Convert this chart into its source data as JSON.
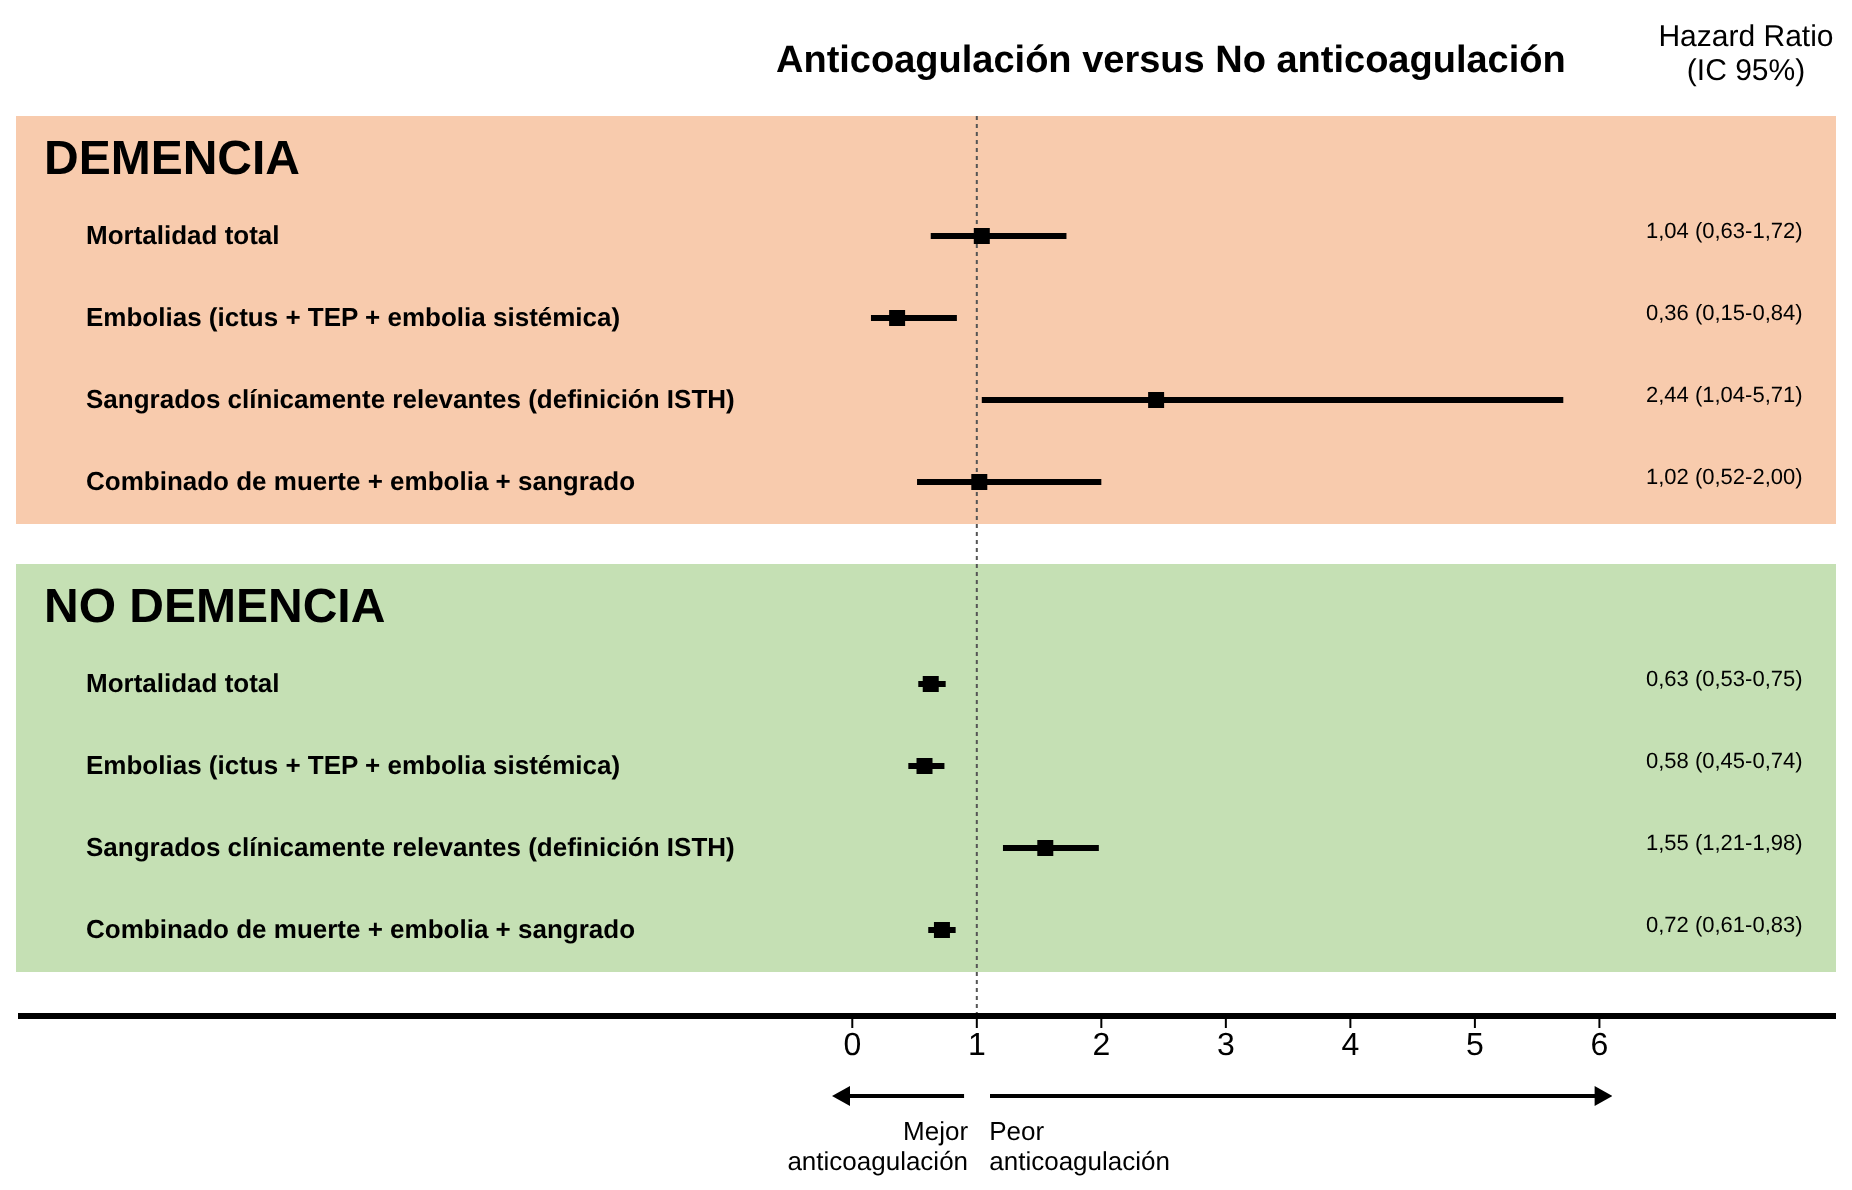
{
  "chart_data": {
    "type": "scatter",
    "orientation": "horizontal",
    "title": "Anticoagulación versus No anticoagulación",
    "annotations": [
      "Hazard Ratio (IC 95%)",
      "DEMENCIA",
      "NO DEMENCIA",
      "Mejor anticoagulación",
      "Peor anticoagulación",
      "1,04 (0,63-1,72)",
      "0,36 (0,15-0,84)",
      "2,44 (1,04-5,71)",
      "1,02 (0,52-2,00)",
      "0,63 (0,53-0,75)",
      "0,58 (0,45-0,74)",
      "1,55 (1,21-1,98)",
      "0,72 (0,61-0,83)"
    ],
    "marker": "square",
    "color": "#000000",
    "categories": [
      "Mortalidad total",
      "Embolias (ictus + TEP + embolia sistémica)",
      "Sangrados clínicamente relevantes (definición ISTH)",
      "Combinado de muerte + embolia + sangrado",
      "Mortalidad total",
      "Embolias (ictus + TEP + embolia sistémica)",
      "Sangrados clínicamente relevantes (definición ISTH)",
      "Combinado de muerte + embolia + sangrado"
    ],
    "values": [
      1.04,
      0.36,
      2.44,
      1.02,
      0.63,
      0.58,
      1.55,
      0.72
    ],
    "errors": [
      [
        0.63,
        1.72
      ],
      [
        0.15,
        0.84
      ],
      [
        1.04,
        5.71
      ],
      [
        0.52,
        2.0
      ],
      [
        0.53,
        0.75
      ],
      [
        0.45,
        0.74
      ],
      [
        1.21,
        1.98
      ],
      [
        0.61,
        0.83
      ]
    ],
    "xlim": [
      -6.7,
      7.9
    ],
    "xticks": [
      0,
      1,
      2,
      3,
      4,
      5,
      6
    ],
    "ref_lines": [
      {
        "axis": "x",
        "value": 1,
        "line_style": "dotted",
        "color": "#555555"
      }
    ]
  }
}
